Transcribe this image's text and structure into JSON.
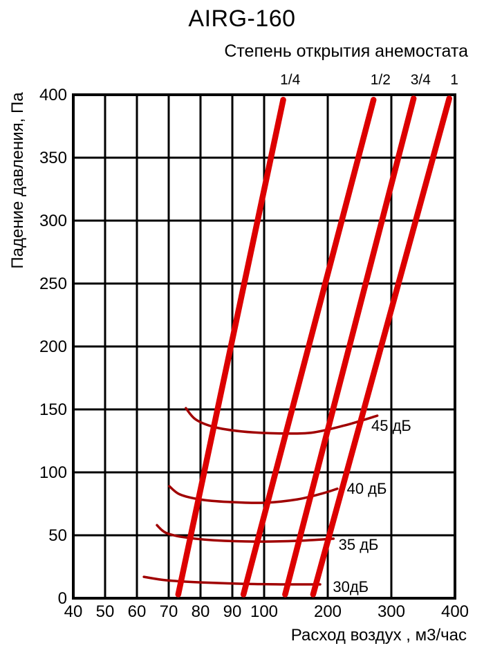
{
  "chart_data": {
    "type": "line",
    "title": "AIRG-160",
    "subtitle": "Степень открытия анемостата",
    "xlabel": "Расход воздух , м3/час",
    "ylabel": "Падение давления, Па",
    "grid": true,
    "colors": {
      "opening_line": "#DC0000",
      "noise_curve": "#A00000",
      "grid": "#000000",
      "text": "#000000",
      "background": "#FFFFFF"
    },
    "x_axis": {
      "unit": "м3/час",
      "scale": "piecewise-linear",
      "ticks": [
        {
          "value": 40,
          "frac": 0.0
        },
        {
          "value": 50,
          "frac": 0.0833
        },
        {
          "value": 60,
          "frac": 0.1667
        },
        {
          "value": 70,
          "frac": 0.25
        },
        {
          "value": 80,
          "frac": 0.3333
        },
        {
          "value": 90,
          "frac": 0.4167
        },
        {
          "value": 100,
          "frac": 0.5
        },
        {
          "value": 200,
          "frac": 0.6667
        },
        {
          "value": 300,
          "frac": 0.8333
        },
        {
          "value": 400,
          "frac": 1.0
        }
      ]
    },
    "y_axis": {
      "unit": "Па",
      "min": 0,
      "max": 400,
      "step": 50,
      "ticks": [
        0,
        50,
        100,
        150,
        200,
        250,
        300,
        350,
        400
      ]
    },
    "opening_lines": [
      {
        "label": "1/4",
        "label_flow": 141,
        "points": [
          [
            73,
            3
          ],
          [
            130,
            396
          ]
        ]
      },
      {
        "label": "1/2",
        "label_flow": 283,
        "points": [
          [
            93.5,
            3
          ],
          [
            272,
            396
          ]
        ]
      },
      {
        "label": "3/4",
        "label_flow": 346,
        "points": [
          [
            133,
            3
          ],
          [
            335,
            397
          ]
        ]
      },
      {
        "label": "1",
        "label_flow": 399,
        "points": [
          [
            177,
            3
          ],
          [
            391,
            397
          ]
        ]
      }
    ],
    "noise_curves": [
      {
        "label": "45 дБ",
        "label_anchor": [
          268.5,
          133
        ],
        "points": [
          [
            75.4,
            151
          ],
          [
            78.5,
            142
          ],
          [
            84.3,
            136
          ],
          [
            93,
            132.5
          ],
          [
            119.6,
            131
          ],
          [
            174,
            131.5
          ],
          [
            228,
            137.5
          ],
          [
            278,
            145
          ]
        ]
      },
      {
        "label": "40 дБ",
        "label_anchor": [
          230,
          83
        ],
        "points": [
          [
            70.2,
            89
          ],
          [
            73.5,
            82.5
          ],
          [
            79.8,
            78.5
          ],
          [
            88.7,
            76.5
          ],
          [
            100,
            75.8
          ],
          [
            152,
            78.5
          ],
          [
            190,
            83
          ],
          [
            215,
            87
          ]
        ]
      },
      {
        "label": "35 дБ",
        "label_anchor": [
          217,
          38.5
        ],
        "points": [
          [
            66.3,
            58
          ],
          [
            69.1,
            52
          ],
          [
            74.6,
            48.5
          ],
          [
            84.3,
            46
          ],
          [
            97.4,
            45
          ],
          [
            152,
            45.6
          ],
          [
            209,
            47.3
          ]
        ]
      },
      {
        "label": "30дБ",
        "label_anchor": [
          208,
          5
        ],
        "points": [
          [
            62.2,
            17
          ],
          [
            69.1,
            14.3
          ],
          [
            80,
            12.6
          ],
          [
            93,
            11.5
          ],
          [
            130,
            11
          ],
          [
            188,
            11
          ]
        ]
      }
    ]
  }
}
